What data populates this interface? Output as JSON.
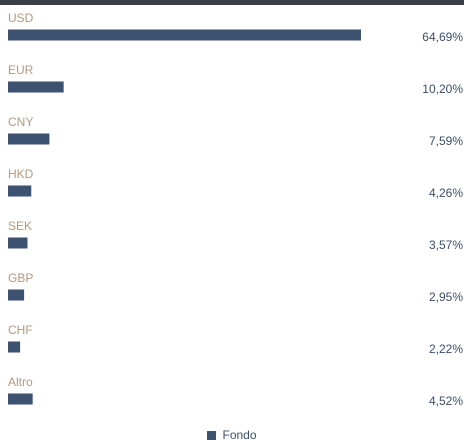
{
  "chart_data": {
    "type": "bar",
    "orientation": "horizontal",
    "categories": [
      "USD",
      "EUR",
      "CNY",
      "HKD",
      "SEK",
      "GBP",
      "CHF",
      "Altro"
    ],
    "series": [
      {
        "name": "Fondo",
        "values": [
          64.69,
          10.2,
          7.59,
          4.26,
          3.57,
          2.95,
          2.22,
          4.52
        ]
      }
    ],
    "value_labels": [
      "64,69%",
      "10,20%",
      "7,59%",
      "4,26%",
      "3,57%",
      "2,95%",
      "2,22%",
      "4,52%"
    ],
    "title": "",
    "xlabel": "",
    "ylabel": "",
    "grid": false,
    "legend_position": "bottom-center",
    "colors": {
      "bar": "#3d5170",
      "category_text": "#b39882",
      "value_text": "#3d4e6b",
      "top_bar": "#3a3e46"
    }
  },
  "legend": {
    "label": "Fondo"
  }
}
